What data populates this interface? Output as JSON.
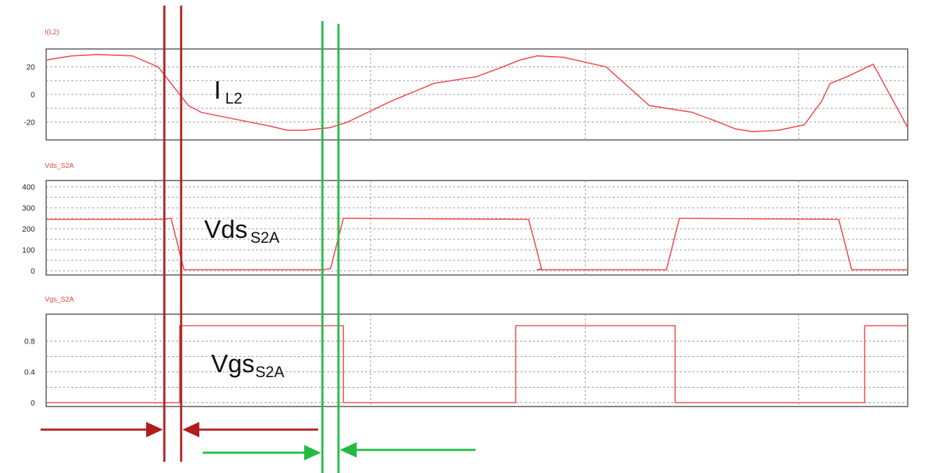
{
  "colors": {
    "trace": "#f04a4a",
    "dead_time_1": "#b01c1c",
    "dead_time_2": "#22bb44",
    "frame": "#555555",
    "grid": "#999999"
  },
  "chart_data": [
    {
      "type": "line",
      "title": "I(L2)",
      "label_main": "I",
      "label_sub": "L2",
      "yticks": [
        20,
        0,
        -20
      ],
      "ylim": [
        -33,
        33
      ],
      "xlim": [
        0,
        1
      ],
      "grid": true,
      "series": [
        {
          "x": [
            0,
            0.03,
            0.06,
            0.1,
            0.13,
            0.165,
            0.18,
            0.22,
            0.26,
            0.28,
            0.3,
            0.33,
            0.35,
            0.4,
            0.45,
            0.5,
            0.53,
            0.55,
            0.57,
            0.6,
            0.65,
            0.7,
            0.75,
            0.78,
            0.8,
            0.82,
            0.85,
            0.88,
            0.9,
            0.91,
            0.93,
            0.96,
            1.0
          ],
          "y": [
            25,
            28,
            29,
            28,
            20,
            -8,
            -13,
            -18,
            -23,
            -26,
            -26,
            -24,
            -20,
            -5,
            8,
            13,
            20,
            25,
            28,
            27,
            20,
            -8,
            -13,
            -20,
            -25,
            -27,
            -26,
            -22,
            -5,
            8,
            13,
            22,
            -24
          ]
        }
      ]
    },
    {
      "type": "line",
      "title": "Vds_S2A",
      "label_main": "Vds",
      "label_sub": "S2A",
      "yticks": [
        400,
        300,
        200,
        100,
        0
      ],
      "ylim": [
        -20,
        430
      ],
      "xlim": [
        0,
        1
      ],
      "grid": true,
      "series": [
        {
          "x": [
            0,
            0.135,
            0.145,
            0.16,
            0.32,
            0.33,
            0.345,
            0.56,
            0.575,
            0.57,
            0.58,
            0.59,
            0.72,
            0.735,
            0.92,
            0.935,
            1.0
          ],
          "y": [
            245,
            245,
            250,
            5,
            5,
            10,
            250,
            245,
            10,
            5,
            5,
            5,
            5,
            250,
            245,
            5,
            5
          ]
        }
      ]
    },
    {
      "type": "line",
      "title": "Vgs_S2A",
      "label_main": "Vgs",
      "label_sub": "S2A",
      "yticks": [
        0.8,
        0.4,
        0
      ],
      "ylim": [
        -0.05,
        1.15
      ],
      "xlim": [
        0,
        1
      ],
      "grid": true,
      "series": [
        {
          "x": [
            0,
            0.155,
            0.155,
            0.325,
            0.345,
            0.345,
            0.545,
            0.545,
            0.73,
            0.73,
            0.95,
            0.95,
            1.0
          ],
          "y": [
            0,
            0,
            1,
            1,
            1,
            0,
            0,
            1,
            1,
            0,
            0,
            1,
            1
          ]
        }
      ]
    }
  ]
}
